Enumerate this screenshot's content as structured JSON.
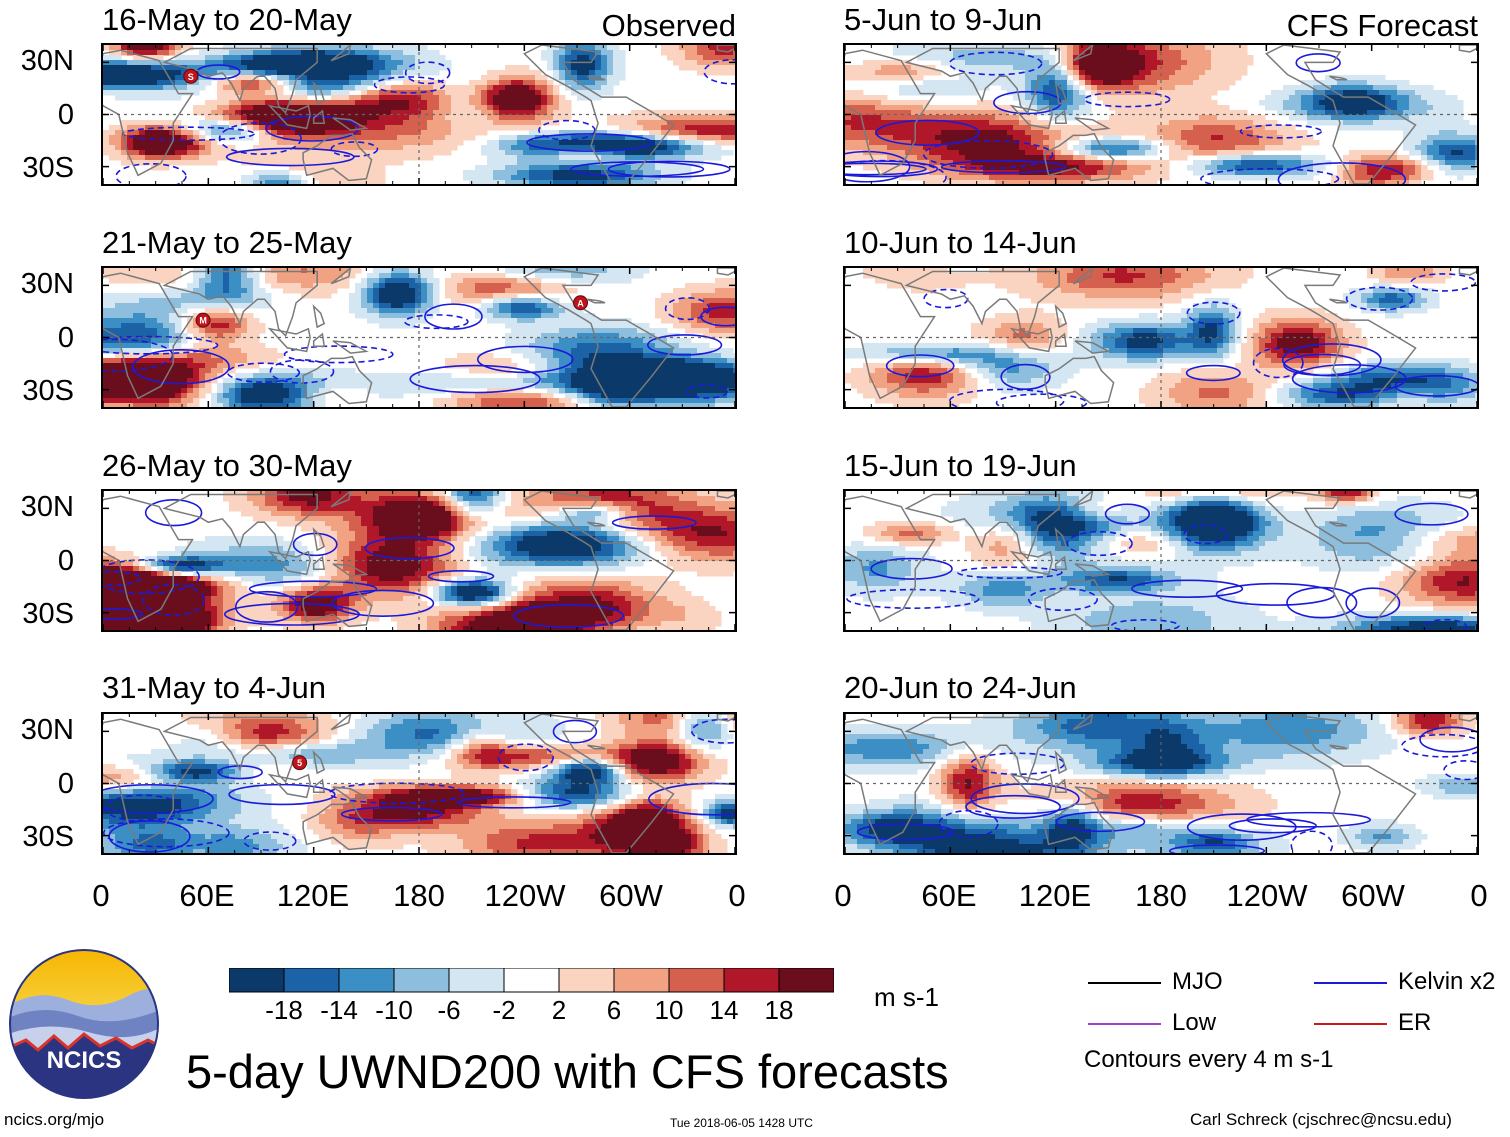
{
  "chart_data": {
    "type": "heatmap",
    "variable": "UWND200",
    "title": "5-day UWND200 with CFS forecasts",
    "units": "m s-1",
    "column_headers": {
      "left": "Observed",
      "right": "CFS Forecast"
    },
    "lat_ticks": [
      "30N",
      "0",
      "30S"
    ],
    "lat_values": [
      30,
      0,
      -30
    ],
    "lat_range": [
      -40,
      40
    ],
    "lon_ticks": [
      "0",
      "60E",
      "120E",
      "180",
      "120W",
      "60W",
      "0"
    ],
    "lon_values": [
      0,
      60,
      120,
      180,
      240,
      300,
      360
    ],
    "lon_range": [
      0,
      360
    ],
    "colorbar": {
      "levels": [
        "-18",
        "-14",
        "-10",
        "-6",
        "-2",
        "2",
        "6",
        "10",
        "14",
        "18"
      ],
      "colors": [
        "#0b3a6a",
        "#1b62a7",
        "#3c8fc4",
        "#8dbedd",
        "#d3e6f1",
        "#ffffff",
        "#fbd3c1",
        "#f0a282",
        "#d5604e",
        "#b0182a",
        "#6a0d1c"
      ]
    },
    "panels": {
      "observed": [
        {
          "period": "16-May to 20-May",
          "markers": [
            {
              "label": "S",
              "lon": 50,
              "lat": 22
            }
          ]
        },
        {
          "period": "21-May to 25-May",
          "markers": [
            {
              "label": "M",
              "lon": 57,
              "lat": 10
            },
            {
              "label": "A",
              "lon": 272,
              "lat": 20
            }
          ]
        },
        {
          "period": "26-May to 30-May",
          "markers": []
        },
        {
          "period": "31-May to 4-Jun",
          "markers": [
            {
              "label": "5",
              "lon": 112,
              "lat": 12
            }
          ]
        }
      ],
      "forecast": [
        {
          "period": "5-Jun to 9-Jun"
        },
        {
          "period": "10-Jun to 14-Jun"
        },
        {
          "period": "15-Jun to 19-Jun"
        },
        {
          "period": "20-Jun to 24-Jun"
        }
      ]
    },
    "contour_legend": [
      {
        "label": "MJO",
        "color": "#000000"
      },
      {
        "label": "Kelvin x2",
        "color": "#1a1adb"
      },
      {
        "label": "Low",
        "color": "#a040d0"
      },
      {
        "label": "ER",
        "color": "#d01818"
      }
    ],
    "contour_note": "Contours every 4 m s-1"
  },
  "footer": {
    "site": "ncics.org/mjo",
    "timestamp": "Tue 2018-06-05 1428 UTC",
    "author": "Carl Schreck (cjschrec@ncsu.edu)"
  },
  "logo": {
    "text": "NCICS"
  }
}
